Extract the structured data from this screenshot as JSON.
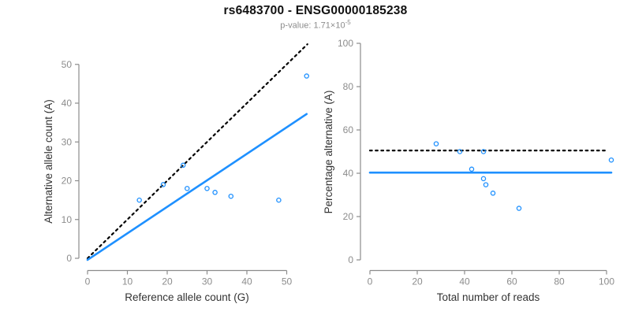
{
  "header": {
    "title": "rs6483700 - ENSG00000185238",
    "subtitle_prefix": "p-value: 1.71×10",
    "subtitle_exponent": "-5"
  },
  "colors": {
    "accent_blue": "#1E90FF",
    "axis_gray": "#8C8C8C",
    "tick_label_gray": "#8C8C8C",
    "axis_title_dark": "#333333",
    "dotted_line_black": "#000000"
  },
  "chart_data": [
    {
      "name": "allele-counts-scatter",
      "type": "scatter",
      "title": "",
      "xlabel": "Reference allele count (G)",
      "ylabel": "Alternative allele count (A)",
      "xticks": [
        0,
        10,
        20,
        30,
        40,
        50
      ],
      "yticks": [
        0,
        10,
        20,
        30,
        40,
        50
      ],
      "xlim": [
        0,
        55
      ],
      "ylim": [
        0,
        55
      ],
      "grid": false,
      "point_style": "open-circle",
      "points": [
        [
          13,
          15
        ],
        [
          19,
          19
        ],
        [
          24,
          24
        ],
        [
          25,
          18
        ],
        [
          30,
          18
        ],
        [
          32,
          17
        ],
        [
          36,
          16
        ],
        [
          48,
          15
        ],
        [
          55,
          47
        ]
      ],
      "lines": [
        {
          "name": "expected-identity-line",
          "style": "dotted",
          "color": "#000000",
          "from": [
            0,
            0
          ],
          "to": [
            55.2,
            55.2
          ]
        },
        {
          "name": "fitted-line",
          "style": "solid",
          "color": "#1E90FF",
          "from": [
            0,
            -0.4
          ],
          "to": [
            55,
            37.2
          ]
        }
      ]
    },
    {
      "name": "percentage-vs-reads-scatter",
      "type": "scatter",
      "title": "",
      "xlabel": "Total number of reads",
      "ylabel": "Percentage alternative (A)",
      "xticks": [
        0,
        20,
        40,
        60,
        80,
        100
      ],
      "yticks": [
        0,
        20,
        40,
        60,
        80,
        100
      ],
      "xlim": [
        0,
        102
      ],
      "ylim": [
        0,
        100
      ],
      "grid": false,
      "point_style": "open-circle",
      "points": [
        [
          28,
          53.6
        ],
        [
          38,
          50.0
        ],
        [
          43,
          41.9
        ],
        [
          48,
          50.0
        ],
        [
          48,
          37.5
        ],
        [
          49,
          34.7
        ],
        [
          52,
          30.8
        ],
        [
          63,
          23.8
        ],
        [
          102,
          46.1
        ]
      ],
      "lines": [
        {
          "name": "expected-50pct-line",
          "style": "dotted",
          "color": "#000000",
          "from": [
            0,
            50.5
          ],
          "to": [
            100.7,
            50.5
          ]
        },
        {
          "name": "fitted-line",
          "style": "solid",
          "color": "#1E90FF",
          "from": [
            0,
            40.3
          ],
          "to": [
            102,
            40.3
          ]
        }
      ]
    }
  ]
}
